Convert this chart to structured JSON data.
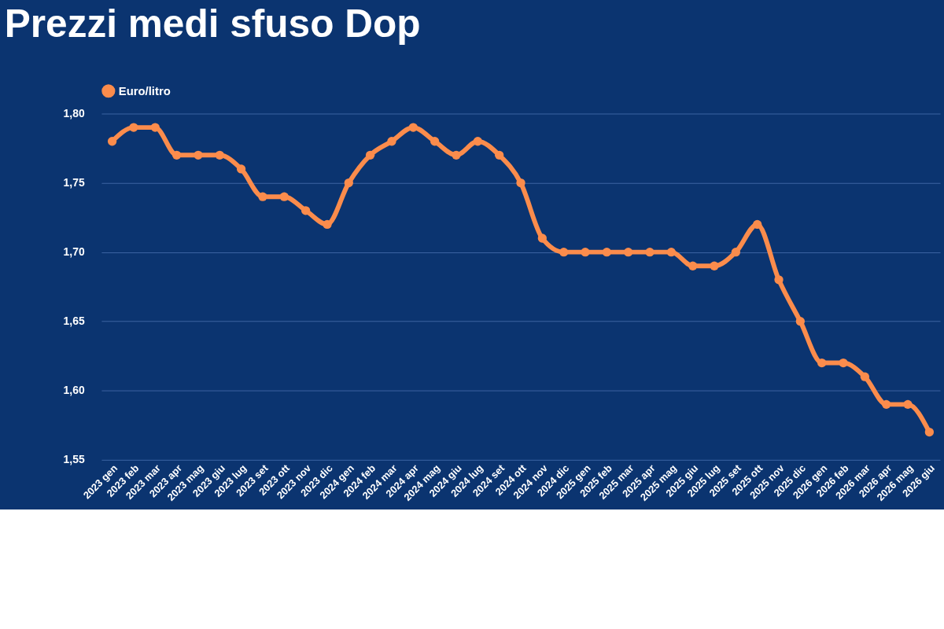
{
  "chart_data": {
    "type": "line",
    "title": "Prezzi medi sfuso Dop",
    "categories": [
      "2023 gen",
      "2023 feb",
      "2023 mar",
      "2023 apr",
      "2023 mag",
      "2023 giu",
      "2023 lug",
      "2023 set",
      "2023 ott",
      "2023 nov",
      "2023 dic",
      "2024 gen",
      "2024 feb",
      "2024 mar",
      "2024 apr",
      "2024 mag",
      "2024 giu",
      "2024 lug",
      "2024 set",
      "2024 ott",
      "2024 nov",
      "2024 dic",
      "2025 gen",
      "2025 feb",
      "2025 mar",
      "2025 apr",
      "2025 mag",
      "2025 giu",
      "2025 lug",
      "2025 set",
      "2025 ott",
      "2025 nov",
      "2025 dic",
      "2026 gen",
      "2026 feb",
      "2026 mar",
      "2026 apr",
      "2026 mag",
      "2026 giu"
    ],
    "series": [
      {
        "name": "Euro/litro",
        "color": "#fb8c4c",
        "values": [
          1.78,
          1.79,
          1.79,
          1.77,
          1.77,
          1.77,
          1.76,
          1.74,
          1.74,
          1.73,
          1.72,
          1.75,
          1.77,
          1.78,
          1.79,
          1.78,
          1.77,
          1.78,
          1.77,
          1.75,
          1.71,
          1.7,
          1.7,
          1.7,
          1.7,
          1.7,
          1.7,
          1.69,
          1.69,
          1.7,
          1.72,
          1.68,
          1.65,
          1.62,
          1.62,
          1.61,
          1.59,
          1.59,
          1.57
        ]
      }
    ],
    "ylim": [
      1.55,
      1.8
    ],
    "yticks": [
      {
        "value": 1.55,
        "label": "1,55"
      },
      {
        "value": 1.6,
        "label": "1,60"
      },
      {
        "value": 1.65,
        "label": "1,65"
      },
      {
        "value": 1.7,
        "label": "1,70"
      },
      {
        "value": 1.75,
        "label": "1,75"
      },
      {
        "value": 1.8,
        "label": "1,80"
      }
    ],
    "grid": "y",
    "legend": "top",
    "marker": "circle",
    "line_style": "solid"
  }
}
